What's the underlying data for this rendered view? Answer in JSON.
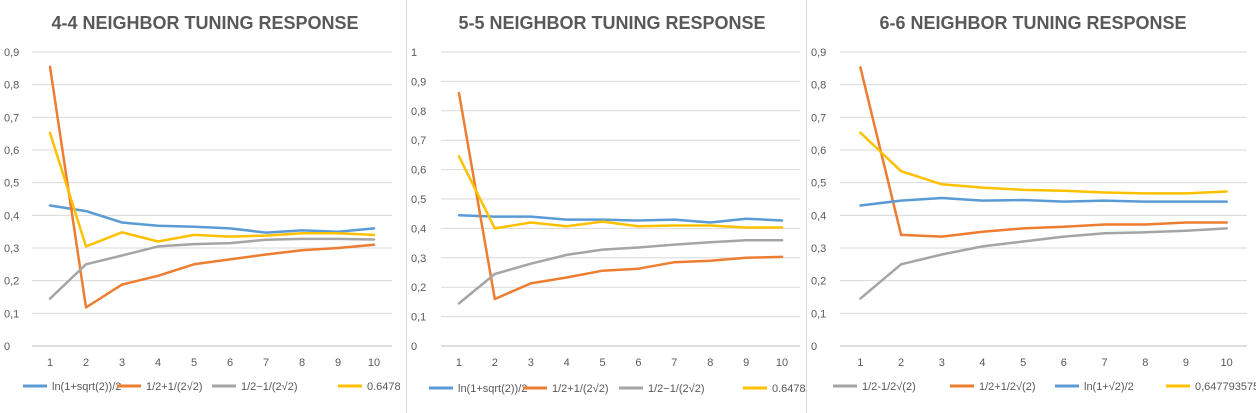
{
  "chart_data": [
    {
      "type": "line",
      "title": "4-4 NEIGHBOR TUNING RESPONSE",
      "xlabel": "",
      "ylabel": "",
      "ylim": [
        0,
        0.9
      ],
      "y_ticks": [
        "0",
        "0,1",
        "0,2",
        "0,3",
        "0,4",
        "0,5",
        "0,6",
        "0,7",
        "0,8",
        "0,9"
      ],
      "x": [
        1,
        2,
        3,
        4,
        5,
        6,
        7,
        8,
        9,
        10
      ],
      "grid": true,
      "legend_position": "bottom",
      "series": [
        {
          "name": "ln(1+sqrt(2))/2",
          "color": "#5b9bd5",
          "values": [
            0.43,
            0.413,
            0.378,
            0.368,
            0.365,
            0.36,
            0.347,
            0.354,
            0.35,
            0.36
          ]
        },
        {
          "name": "1/2+1/(2√2)",
          "color": "#ed7d31",
          "values": [
            0.855,
            0.118,
            0.188,
            0.215,
            0.25,
            0.265,
            0.28,
            0.293,
            0.3,
            0.31
          ]
        },
        {
          "name": "1/2−1/(2√2)",
          "color": "#a5a5a5",
          "values": [
            0.145,
            0.25,
            0.277,
            0.305,
            0.312,
            0.315,
            0.325,
            0.328,
            0.328,
            0.326
          ]
        },
        {
          "name": "0.6478",
          "color": "#ffc000",
          "values": [
            0.653,
            0.305,
            0.348,
            0.32,
            0.34,
            0.335,
            0.338,
            0.345,
            0.345,
            0.34
          ]
        }
      ]
    },
    {
      "type": "line",
      "title": "5-5 NEIGHBOR TUNING RESPONSE",
      "xlabel": "",
      "ylabel": "",
      "ylim": [
        0,
        1
      ],
      "y_ticks": [
        "0",
        "0,1",
        "0,2",
        "0,3",
        "0,4",
        "0,5",
        "0,6",
        "0,7",
        "0,8",
        "0,9",
        "1"
      ],
      "x": [
        1,
        2,
        3,
        4,
        5,
        6,
        7,
        8,
        9,
        10
      ],
      "grid": true,
      "legend_position": "bottom",
      "series": [
        {
          "name": "ln(1+sqrt(2))/2",
          "color": "#5b9bd5",
          "values": [
            0.445,
            0.44,
            0.44,
            0.43,
            0.43,
            0.427,
            0.43,
            0.42,
            0.433,
            0.427
          ]
        },
        {
          "name": "1/2+1/(2√2)",
          "color": "#ed7d31",
          "values": [
            0.86,
            0.16,
            0.213,
            0.233,
            0.256,
            0.263,
            0.285,
            0.29,
            0.3,
            0.303
          ]
        },
        {
          "name": "1/2−1/(2√2)",
          "color": "#a5a5a5",
          "values": [
            0.145,
            0.245,
            0.28,
            0.31,
            0.328,
            0.335,
            0.345,
            0.353,
            0.36,
            0.36
          ]
        },
        {
          "name": "0.6478",
          "color": "#ffc000",
          "values": [
            0.645,
            0.4,
            0.42,
            0.407,
            0.423,
            0.407,
            0.41,
            0.41,
            0.403,
            0.403
          ]
        }
      ]
    },
    {
      "type": "line",
      "title": "6-6 NEIGHBOR TUNING RESPONSE",
      "xlabel": "",
      "ylabel": "",
      "ylim": [
        0,
        0.9
      ],
      "y_ticks": [
        "0",
        "0,1",
        "0,2",
        "0,3",
        "0,4",
        "0,5",
        "0,6",
        "0,7",
        "0,8",
        "0,9"
      ],
      "x": [
        1,
        2,
        3,
        4,
        5,
        6,
        7,
        8,
        9,
        10
      ],
      "grid": true,
      "legend_position": "bottom",
      "series": [
        {
          "name": "1/2-1/2√(2)",
          "color": "#a5a5a5",
          "values": [
            0.145,
            0.25,
            0.28,
            0.305,
            0.32,
            0.335,
            0.345,
            0.348,
            0.353,
            0.36
          ]
        },
        {
          "name": "1/2+1/2√(2)",
          "color": "#ed7d31",
          "values": [
            0.853,
            0.34,
            0.335,
            0.35,
            0.36,
            0.365,
            0.372,
            0.372,
            0.378,
            0.378
          ]
        },
        {
          "name": "ln(1+√2)/2",
          "color": "#5b9bd5",
          "values": [
            0.43,
            0.445,
            0.453,
            0.445,
            0.447,
            0.442,
            0.445,
            0.442,
            0.442,
            0.442
          ]
        },
        {
          "name": "0,647793575",
          "color": "#ffc000",
          "values": [
            0.653,
            0.535,
            0.495,
            0.485,
            0.478,
            0.475,
            0.47,
            0.467,
            0.467,
            0.473
          ]
        }
      ]
    }
  ]
}
